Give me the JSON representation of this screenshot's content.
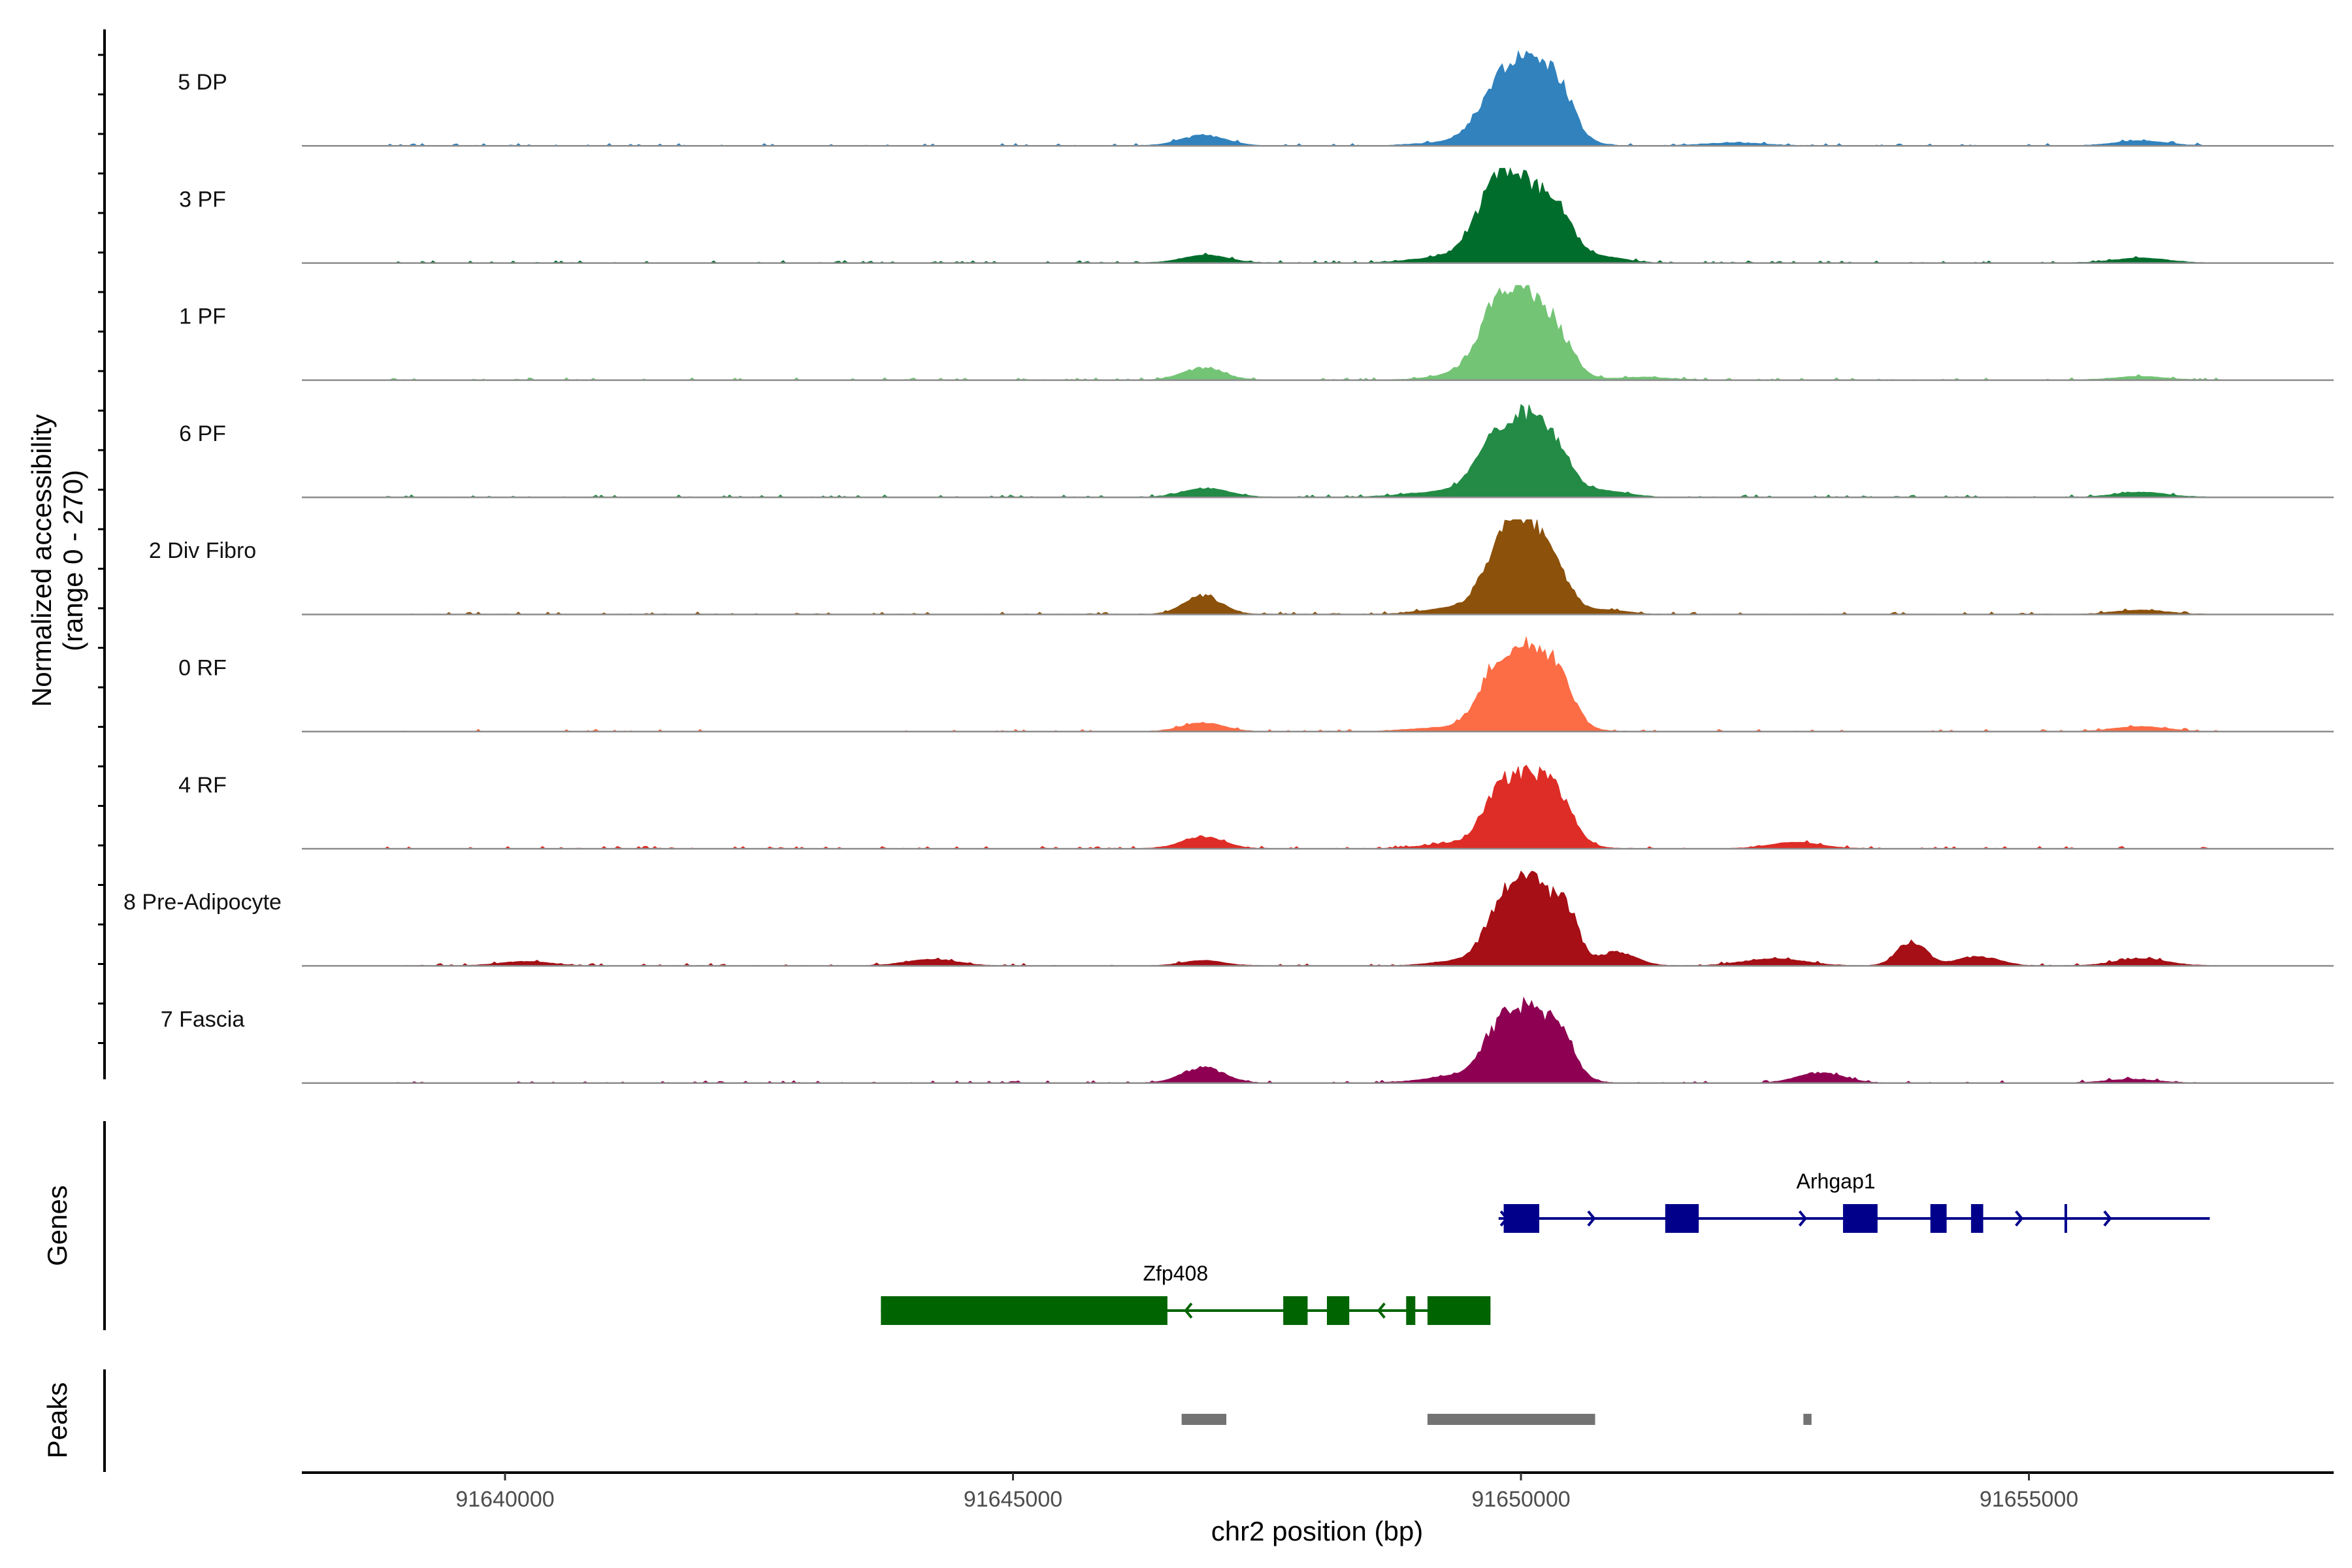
{
  "chart_data": {
    "type": "area",
    "title": "",
    "xlabel": "chr2 position (bp)",
    "ylabel": "Normalized accessibility",
    "ylabel_range": "(range 0 - 270)",
    "ylim": [
      0,
      270
    ],
    "xlim": [
      91638000,
      91658000
    ],
    "x_ticks": [
      91640000,
      91645000,
      91650000,
      91655000
    ],
    "x_tick_labels": [
      "91640000",
      "91645000",
      "91650000",
      "91655000"
    ],
    "tracks": [
      {
        "name": "5 DP",
        "color": "#3182bd",
        "peaks": [
          [
            91646870,
            30,
            220
          ],
          [
            91649300,
            10,
            300
          ],
          [
            91649550,
            22,
            150
          ],
          [
            91649750,
            80,
            170
          ],
          [
            91650100,
            250,
            260
          ],
          [
            91650400,
            60,
            130
          ],
          [
            91652100,
            8,
            300
          ],
          [
            91656100,
            14,
            250
          ]
        ]
      },
      {
        "name": "3 PF",
        "color": "#006d2c",
        "peaks": [
          [
            91646900,
            22,
            220
          ],
          [
            91649200,
            14,
            300
          ],
          [
            91649550,
            30,
            180
          ],
          [
            91649750,
            115,
            170
          ],
          [
            91650050,
            220,
            280
          ],
          [
            91650400,
            60,
            140
          ],
          [
            91650850,
            14,
            200
          ],
          [
            91656100,
            14,
            250
          ]
        ]
      },
      {
        "name": "1 PF",
        "color": "#74c476",
        "peaks": [
          [
            91646870,
            35,
            200
          ],
          [
            91649350,
            14,
            250
          ],
          [
            91649550,
            25,
            150
          ],
          [
            91649750,
            100,
            160
          ],
          [
            91650050,
            250,
            260
          ],
          [
            91650400,
            45,
            130
          ],
          [
            91651200,
            8,
            250
          ],
          [
            91656100,
            10,
            250
          ]
        ]
      },
      {
        "name": "6 PF",
        "color": "#238b45",
        "peaks": [
          [
            91646900,
            26,
            220
          ],
          [
            91649200,
            14,
            350
          ],
          [
            91649550,
            30,
            180
          ],
          [
            91649750,
            75,
            160
          ],
          [
            91650080,
            230,
            260
          ],
          [
            91650400,
            40,
            130
          ],
          [
            91650850,
            16,
            220
          ],
          [
            91656100,
            14,
            250
          ]
        ]
      },
      {
        "name": "2 Div Fibro",
        "color": "#8c510a",
        "peaks": [
          [
            91646870,
            55,
            180
          ],
          [
            91649350,
            18,
            300
          ],
          [
            91649750,
            80,
            170
          ],
          [
            91650050,
            270,
            240
          ],
          [
            91650400,
            40,
            130
          ],
          [
            91650850,
            12,
            200
          ],
          [
            91656100,
            12,
            250
          ]
        ]
      },
      {
        "name": "0 RF",
        "color": "#fc6c45",
        "peaks": [
          [
            91646870,
            25,
            200
          ],
          [
            91649200,
            10,
            300
          ],
          [
            91649550,
            20,
            150
          ],
          [
            91649750,
            110,
            160
          ],
          [
            91650100,
            240,
            250
          ],
          [
            91650400,
            60,
            130
          ],
          [
            91656100,
            14,
            250
          ]
        ]
      },
      {
        "name": "4 RF",
        "color": "#de2d26",
        "peaks": [
          [
            91646870,
            35,
            200
          ],
          [
            91649350,
            14,
            300
          ],
          [
            91649750,
            85,
            160
          ],
          [
            91650100,
            210,
            260
          ],
          [
            91650400,
            55,
            130
          ],
          [
            91652700,
            18,
            250
          ]
        ]
      },
      {
        "name": "8 Pre-Adipocyte",
        "color": "#a50f15",
        "peaks": [
          [
            91640200,
            12,
            250
          ],
          [
            91644200,
            18,
            250
          ],
          [
            91646870,
            15,
            200
          ],
          [
            91649350,
            12,
            250
          ],
          [
            91649750,
            50,
            160
          ],
          [
            91650050,
            270,
            240
          ],
          [
            91650450,
            120,
            120
          ],
          [
            91650950,
            40,
            180
          ],
          [
            91652500,
            20,
            300
          ],
          [
            91653850,
            70,
            140
          ],
          [
            91654500,
            28,
            200
          ],
          [
            91656100,
            20,
            250
          ]
        ]
      },
      {
        "name": "7 Fascia",
        "color": "#8e0152",
        "peaks": [
          [
            91646870,
            45,
            200
          ],
          [
            91649350,
            18,
            300
          ],
          [
            91649750,
            55,
            160
          ],
          [
            91650050,
            210,
            260
          ],
          [
            91650400,
            85,
            130
          ],
          [
            91652950,
            30,
            220
          ],
          [
            91656000,
            10,
            250
          ]
        ]
      }
    ],
    "genes": [
      {
        "name": "Arhgap1",
        "strand": "+",
        "color": "#00008b",
        "start": 91649780,
        "end": 91656780,
        "label_at": 91653100,
        "exons": [
          [
            91649830,
            91650180
          ],
          [
            91651420,
            91651750
          ],
          [
            91653170,
            91653510
          ],
          [
            91654030,
            91654190
          ],
          [
            91654430,
            91654550
          ],
          [
            91655350,
            91655370
          ]
        ],
        "arrows": [
          91649860,
          91650720,
          91652800,
          91654930,
          91655800
        ]
      },
      {
        "name": "Zfp408",
        "strand": "-",
        "color": "#006400",
        "start": 91643700,
        "end": 91649700,
        "label_at": 91646600,
        "exons": [
          [
            91643700,
            91646520
          ],
          [
            91647660,
            91647900
          ],
          [
            91648090,
            91648310
          ],
          [
            91648870,
            91648960
          ],
          [
            91649080,
            91649700
          ]
        ],
        "arrows": [
          91646700,
          91648600
        ]
      }
    ],
    "peaks_track": {
      "name": "Peaks",
      "color": "#737373",
      "regions": [
        [
          91646660,
          91647100
        ],
        [
          91649080,
          91650730
        ],
        [
          91652780,
          91652860
        ]
      ]
    },
    "panels": [
      "Genes",
      "Peaks"
    ]
  }
}
